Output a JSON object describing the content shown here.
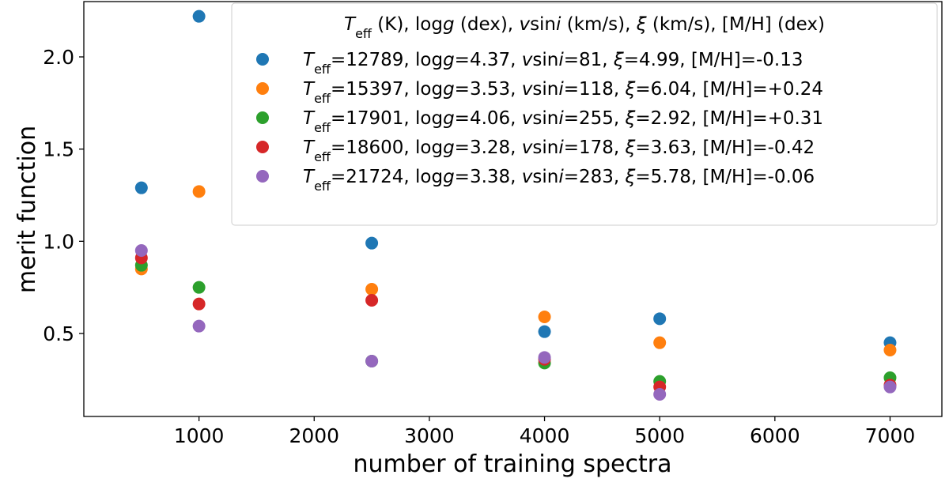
{
  "chart_data": {
    "type": "scatter",
    "title": "",
    "xlabel": "number of training spectra",
    "ylabel": "merit function",
    "xlim": [
      0,
      7450
    ],
    "ylim": [
      0.05,
      2.3
    ],
    "xticks": [
      1000,
      2000,
      3000,
      4000,
      5000,
      6000,
      7000
    ],
    "yticks": [
      0.5,
      1.0,
      1.5,
      2.0
    ],
    "xtick_labels": [
      "1000",
      "2000",
      "3000",
      "4000",
      "5000",
      "6000",
      "7000"
    ],
    "ytick_labels": [
      "0.5",
      "1.0",
      "1.5",
      "2.0"
    ],
    "grid": false,
    "legend": {
      "position": "top-right",
      "title": "T_eff (K), logg (dex), vsini (km/s), ξ (km/s), [M/H] (dex)"
    },
    "series": [
      {
        "name": "T_eff=12789, logg=4.37, vsini=81, ξ=4.99, [M/H]=-0.13",
        "teff": "12789",
        "logg": "4.37",
        "vsini": "81",
        "xi": "4.99",
        "mh": "-0.13",
        "color": "#1f77b4",
        "points": [
          [
            500,
            1.29
          ],
          [
            1000,
            2.22
          ],
          [
            2500,
            0.99
          ],
          [
            4000,
            0.51
          ],
          [
            5000,
            0.58
          ],
          [
            7000,
            0.45
          ]
        ]
      },
      {
        "name": "T_eff=15397, logg=3.53, vsini=118, ξ=6.04, [M/H]=+0.24",
        "teff": "15397",
        "logg": "3.53",
        "vsini": "118",
        "xi": "6.04",
        "mh": "+0.24",
        "color": "#ff7f0e",
        "points": [
          [
            500,
            0.85
          ],
          [
            1000,
            1.27
          ],
          [
            2500,
            0.74
          ],
          [
            4000,
            0.59
          ],
          [
            5000,
            0.45
          ],
          [
            7000,
            0.41
          ]
        ]
      },
      {
        "name": "T_eff=17901, logg=4.06, vsini=255, ξ=2.92, [M/H]=+0.31",
        "teff": "17901",
        "logg": "4.06",
        "vsini": "255",
        "xi": "2.92",
        "mh": "+0.31",
        "color": "#2ca02c",
        "points": [
          [
            500,
            0.87
          ],
          [
            1000,
            0.75
          ],
          [
            2500,
            0.35
          ],
          [
            4000,
            0.34
          ],
          [
            5000,
            0.24
          ],
          [
            7000,
            0.26
          ]
        ]
      },
      {
        "name": "T_eff=18600, logg=3.28, vsini=178, ξ=3.63, [M/H]=-0.42",
        "teff": "18600",
        "logg": "3.28",
        "vsini": "178",
        "xi": "3.63",
        "mh": "-0.42",
        "color": "#d62728",
        "points": [
          [
            500,
            0.91
          ],
          [
            1000,
            0.66
          ],
          [
            2500,
            0.68
          ],
          [
            4000,
            0.36
          ],
          [
            5000,
            0.21
          ],
          [
            7000,
            0.22
          ]
        ]
      },
      {
        "name": "T_eff=21724, logg=3.38, vsini=283, ξ=5.78, [M/H]=-0.06",
        "teff": "21724",
        "logg": "3.38",
        "vsini": "283",
        "xi": "5.78",
        "mh": "-0.06",
        "color": "#9467bd",
        "points": [
          [
            500,
            0.95
          ],
          [
            1000,
            0.54
          ],
          [
            2500,
            0.35
          ],
          [
            4000,
            0.37
          ],
          [
            5000,
            0.17
          ],
          [
            7000,
            0.21
          ]
        ]
      }
    ]
  }
}
